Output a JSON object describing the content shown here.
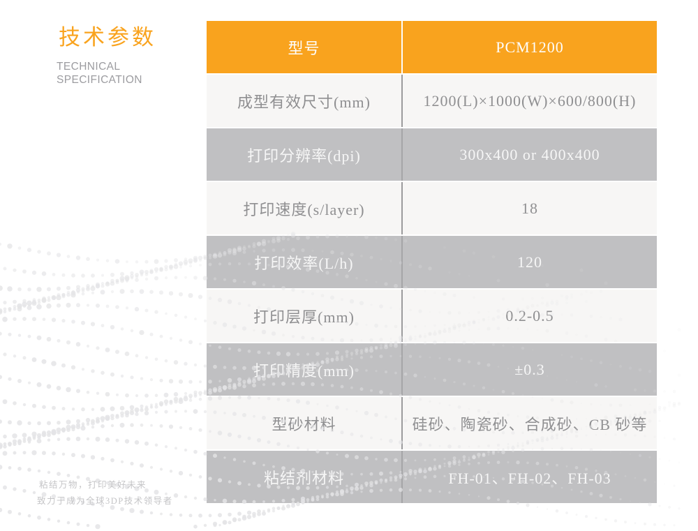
{
  "page": {
    "title_cn": "技术参数",
    "title_en_line1": "TECHNICAL",
    "title_en_line2": "SPECIFICATION",
    "slogan_line1": "粘结万物，打印美好未来",
    "slogan_line2": "致力于成为全球3DP技术领导者"
  },
  "colors": {
    "accent_orange": "#F9A31E",
    "row_gray": "#C0C0C2",
    "row_light": "#F6F5F4",
    "text_on_gray": "#F6F6F6",
    "text_on_light": "#8F8F91",
    "divider_gray": "#9B9B9D",
    "dot_pattern": "#E4E4E6"
  },
  "table": {
    "header": {
      "label": "型号",
      "value": "PCM1200"
    },
    "rows": [
      {
        "label": "成型有效尺寸(mm)",
        "value": "1200(L)×1000(W)×600/800(H)"
      },
      {
        "label": "打印分辨率(dpi)",
        "value": "300x400 or 400x400"
      },
      {
        "label": "打印速度(s/layer)",
        "value": "18"
      },
      {
        "label": "打印效率(L/h)",
        "value": "120"
      },
      {
        "label": "打印层厚(mm)",
        "value": "0.2-0.5"
      },
      {
        "label": "打印精度(mm)",
        "value": "±0.3"
      },
      {
        "label": "型砂材料",
        "value": "硅砂、陶瓷砂、合成砂、CB 砂等"
      },
      {
        "label": "粘结剂材料",
        "value": "FH-01、FH-02、FH-03"
      }
    ]
  }
}
